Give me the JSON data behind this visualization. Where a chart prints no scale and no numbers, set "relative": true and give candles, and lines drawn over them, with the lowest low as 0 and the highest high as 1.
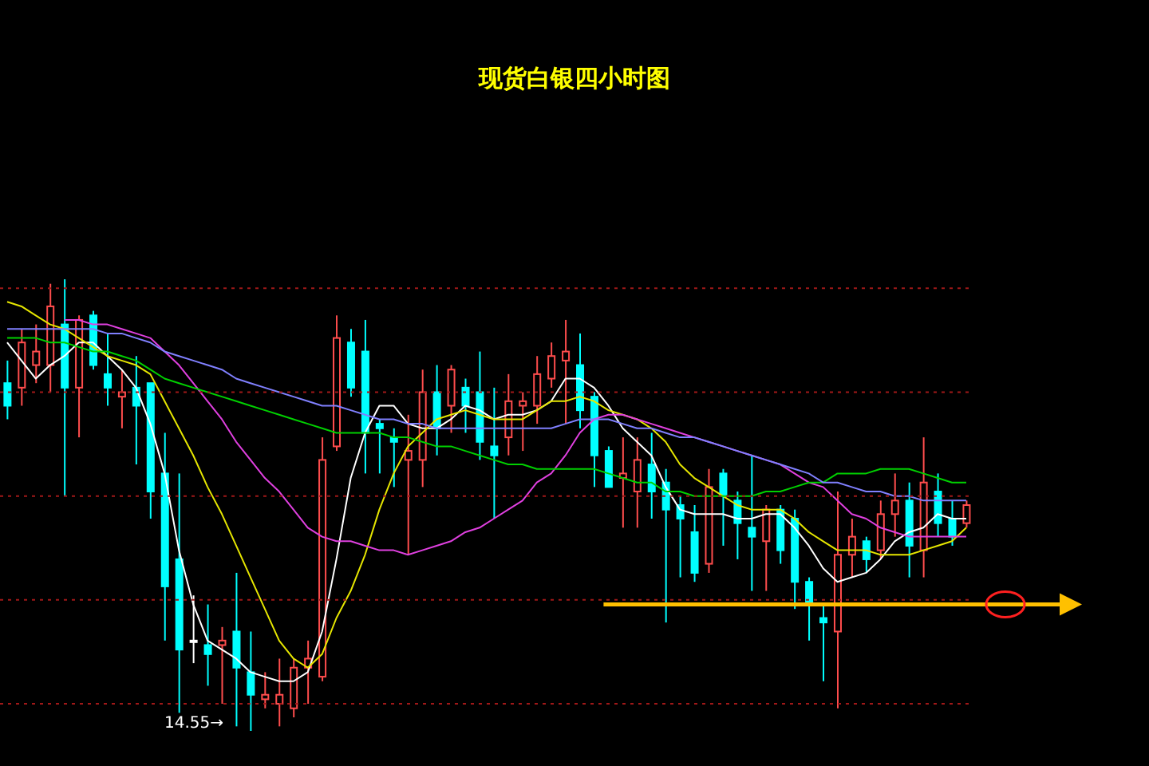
{
  "chart_data": {
    "type": "candlestick",
    "title": "现货白银四小时图",
    "relative": true,
    "tick_labels": false,
    "categories": [
      null,
      null,
      null,
      null,
      null,
      null,
      null,
      null,
      null,
      null,
      null,
      null,
      null,
      null,
      null,
      null,
      null,
      null,
      null,
      null,
      null,
      null,
      null,
      null,
      null,
      null,
      null,
      null,
      null,
      null,
      null,
      null,
      null,
      null,
      null,
      null,
      null,
      null,
      null,
      null,
      null,
      null,
      null,
      null,
      null,
      null,
      null,
      null,
      null,
      null,
      null,
      null,
      null,
      null,
      null,
      null,
      null,
      null,
      null,
      null,
      null,
      null,
      null,
      null,
      null,
      null,
      null,
      null
    ],
    "ohlc": [
      [
        0.77,
        0.82,
        0.69,
        0.72
      ],
      [
        0.76,
        0.89,
        0.72,
        0.86
      ],
      [
        0.81,
        0.9,
        0.77,
        0.84
      ],
      [
        0.81,
        0.99,
        0.75,
        0.94
      ],
      [
        0.9,
        1,
        0.52,
        0.76
      ],
      [
        0.76,
        0.92,
        0.65,
        0.91
      ],
      [
        0.92,
        0.93,
        0.8,
        0.81
      ],
      [
        0.79,
        0.88,
        0.72,
        0.76
      ],
      [
        0.74,
        0.8,
        0.67,
        0.75
      ],
      [
        0.76,
        0.83,
        0.59,
        0.72
      ],
      [
        0.77,
        0.77,
        0.47,
        0.53
      ],
      [
        0.57,
        0.66,
        0.2,
        0.32
      ],
      [
        0.38,
        0.57,
        0.04,
        0.18
      ],
      [
        0.2,
        0.3,
        0.15,
        0.2
      ],
      [
        0.19,
        0.28,
        0.1,
        0.17
      ],
      [
        0.19,
        0.23,
        0.06,
        0.2
      ],
      [
        0.22,
        0.35,
        0.01,
        0.14
      ],
      [
        0.13,
        0.22,
        0,
        0.08
      ],
      [
        0.07,
        0.13,
        0.05,
        0.08
      ],
      [
        0.06,
        0.16,
        0.01,
        0.08
      ],
      [
        0.05,
        0.16,
        0.03,
        0.14
      ],
      [
        0.14,
        0.2,
        0.06,
        0.16
      ],
      [
        0.12,
        0.65,
        0.11,
        0.6
      ],
      [
        0.63,
        0.92,
        0.62,
        0.87
      ],
      [
        0.86,
        0.89,
        0.74,
        0.76
      ],
      [
        0.84,
        0.91,
        0.57,
        0.66
      ],
      [
        0.68,
        0.69,
        0.57,
        0.67
      ],
      [
        0.65,
        0.67,
        0.54,
        0.64
      ],
      [
        0.6,
        0.7,
        0.39,
        0.62
      ],
      [
        0.6,
        0.8,
        0.54,
        0.75
      ],
      [
        0.75,
        0.81,
        0.61,
        0.67
      ],
      [
        0.72,
        0.81,
        0.66,
        0.8
      ],
      [
        0.76,
        0.78,
        0.66,
        0.72
      ],
      [
        0.75,
        0.84,
        0.6,
        0.64
      ],
      [
        0.63,
        0.76,
        0.47,
        0.61
      ],
      [
        0.65,
        0.79,
        0.61,
        0.73
      ],
      [
        0.72,
        0.75,
        0.62,
        0.73
      ],
      [
        0.72,
        0.83,
        0.68,
        0.79
      ],
      [
        0.78,
        0.86,
        0.76,
        0.83
      ],
      [
        0.82,
        0.91,
        0.68,
        0.84
      ],
      [
        0.81,
        0.88,
        0.67,
        0.71
      ],
      [
        0.74,
        0.75,
        0.54,
        0.61
      ],
      [
        0.62,
        0.63,
        0.54,
        0.54
      ],
      [
        0.56,
        0.65,
        0.45,
        0.57
      ],
      [
        0.53,
        0.65,
        0.45,
        0.6
      ],
      [
        0.59,
        0.66,
        0.47,
        0.53
      ],
      [
        0.55,
        0.58,
        0.24,
        0.49
      ],
      [
        0.5,
        0.52,
        0.34,
        0.47
      ],
      [
        0.44,
        0.5,
        0.33,
        0.35
      ],
      [
        0.37,
        0.58,
        0.35,
        0.54
      ],
      [
        0.57,
        0.58,
        0.41,
        0.52
      ],
      [
        0.51,
        0.53,
        0.38,
        0.46
      ],
      [
        0.45,
        0.61,
        0.31,
        0.43
      ],
      [
        0.42,
        0.5,
        0.31,
        0.49
      ],
      [
        0.49,
        0.5,
        0.37,
        0.4
      ],
      [
        0.47,
        0.49,
        0.27,
        0.33
      ],
      [
        0.33,
        0.34,
        0.2,
        0.28
      ],
      [
        0.25,
        0.28,
        0.11,
        0.24
      ],
      [
        0.22,
        0.53,
        0.05,
        0.39
      ],
      [
        0.39,
        0.47,
        0.34,
        0.43
      ],
      [
        0.42,
        0.43,
        0.35,
        0.38
      ],
      [
        0.4,
        0.51,
        0.38,
        0.48
      ],
      [
        0.48,
        0.57,
        0.43,
        0.51
      ],
      [
        0.51,
        0.55,
        0.34,
        0.41
      ],
      [
        0.4,
        0.65,
        0.34,
        0.55
      ],
      [
        0.53,
        0.57,
        0.43,
        0.46
      ],
      [
        0.47,
        0.51,
        0.41,
        0.43
      ],
      [
        0.46,
        0.51,
        0.45,
        0.5
      ]
    ],
    "colors": [
      "#00ffff",
      "#ff4d4d",
      "#ff4d4d",
      "#ff4d4d",
      "#00ffff",
      "#ff4d4d",
      "#00ffff",
      "#00ffff",
      "#ff4d4d",
      "#00ffff",
      "#00ffff",
      "#00ffff",
      "#00ffff",
      "#ffffff",
      "#00ffff",
      "#ff4d4d",
      "#00ffff",
      "#00ffff",
      "#ff4d4d",
      "#ff4d4d",
      "#ff4d4d",
      "#ff4d4d",
      "#ff4d4d",
      "#ff4d4d",
      "#00ffff",
      "#00ffff",
      "#00ffff",
      "#00ffff",
      "#ff4d4d",
      "#ff4d4d",
      "#00ffff",
      "#ff4d4d",
      "#00ffff",
      "#00ffff",
      "#00ffff",
      "#ff4d4d",
      "#ff4d4d",
      "#ff4d4d",
      "#ff4d4d",
      "#ff4d4d",
      "#00ffff",
      "#00ffff",
      "#00ffff",
      "#ff4d4d",
      "#ff4d4d",
      "#00ffff",
      "#00ffff",
      "#00ffff",
      "#00ffff",
      "#ff4d4d",
      "#00ffff",
      "#00ffff",
      "#00ffff",
      "#ff4d4d",
      "#00ffff",
      "#00ffff",
      "#00ffff",
      "#00ffff",
      "#ff4d4d",
      "#ff4d4d",
      "#00ffff",
      "#ff4d4d",
      "#ff4d4d",
      "#00ffff",
      "#ff4d4d",
      "#00ffff",
      "#00ffff",
      "#ff4d4d"
    ],
    "series": [
      {
        "type": "line",
        "color": "#ffffff",
        "values": [
          0.86,
          0.82,
          0.78,
          0.81,
          0.83,
          0.86,
          0.86,
          0.83,
          0.8,
          0.76,
          0.68,
          0.57,
          0.4,
          0.28,
          0.2,
          0.18,
          0.16,
          0.13,
          0.12,
          0.11,
          0.11,
          0.13,
          0.22,
          0.38,
          0.56,
          0.66,
          0.72,
          0.72,
          0.68,
          0.67,
          0.67,
          0.69,
          0.72,
          0.71,
          0.69,
          0.7,
          0.7,
          0.71,
          0.73,
          0.78,
          0.78,
          0.76,
          0.72,
          0.67,
          0.64,
          0.61,
          0.54,
          0.49,
          0.48,
          0.48,
          0.48,
          0.47,
          0.47,
          0.48,
          0.48,
          0.45,
          0.41,
          0.36,
          0.33,
          0.34,
          0.35,
          0.38,
          0.42,
          0.44,
          0.45,
          0.48,
          0.47,
          0.47
        ]
      },
      {
        "type": "line",
        "color": "#e6e600",
        "values": [
          0.95,
          0.94,
          0.92,
          0.9,
          0.89,
          0.87,
          0.85,
          0.83,
          0.82,
          0.81,
          0.79,
          0.73,
          0.67,
          0.61,
          0.54,
          0.48,
          0.41,
          0.34,
          0.27,
          0.2,
          0.16,
          0.14,
          0.17,
          0.25,
          0.31,
          0.39,
          0.49,
          0.57,
          0.63,
          0.66,
          0.69,
          0.7,
          0.71,
          0.7,
          0.69,
          0.69,
          0.69,
          0.71,
          0.73,
          0.73,
          0.74,
          0.73,
          0.71,
          0.7,
          0.69,
          0.67,
          0.64,
          0.59,
          0.56,
          0.54,
          0.52,
          0.5,
          0.49,
          0.49,
          0.49,
          0.47,
          0.44,
          0.42,
          0.4,
          0.4,
          0.4,
          0.39,
          0.39,
          0.39,
          0.4,
          0.41,
          0.42,
          0.45
        ]
      },
      {
        "type": "line",
        "color": "#e040e0",
        "values": [
          null,
          null,
          null,
          null,
          0.91,
          0.91,
          0.9,
          0.9,
          0.89,
          0.88,
          0.87,
          0.84,
          0.81,
          0.77,
          0.73,
          0.69,
          0.64,
          0.6,
          0.56,
          0.53,
          0.49,
          0.45,
          0.43,
          0.42,
          0.42,
          0.41,
          0.4,
          0.4,
          0.39,
          0.4,
          0.41,
          0.42,
          0.44,
          0.45,
          0.47,
          0.49,
          0.51,
          0.55,
          0.57,
          0.61,
          0.66,
          0.69,
          0.7,
          0.7,
          0.69,
          0.68,
          0.67,
          0.66,
          0.65,
          0.64,
          0.63,
          0.62,
          0.61,
          0.6,
          0.59,
          0.57,
          0.55,
          0.54,
          0.51,
          0.48,
          0.47,
          0.45,
          0.44,
          0.43,
          0.43,
          0.43,
          0.43,
          0.43
        ]
      },
      {
        "type": "line",
        "color": "#00d000",
        "values": [
          0.87,
          0.87,
          0.87,
          0.86,
          0.86,
          0.85,
          0.84,
          0.84,
          0.83,
          0.82,
          0.8,
          0.78,
          0.77,
          0.76,
          0.75,
          0.74,
          0.73,
          0.72,
          0.71,
          0.7,
          0.69,
          0.68,
          0.67,
          0.66,
          0.66,
          0.66,
          0.66,
          0.65,
          0.65,
          0.64,
          0.63,
          0.63,
          0.62,
          0.61,
          0.6,
          0.59,
          0.59,
          0.58,
          0.58,
          0.58,
          0.58,
          0.58,
          0.57,
          0.56,
          0.55,
          0.55,
          0.53,
          0.53,
          0.52,
          0.52,
          0.52,
          0.52,
          0.52,
          0.53,
          0.53,
          0.54,
          0.55,
          0.55,
          0.57,
          0.57,
          0.57,
          0.58,
          0.58,
          0.58,
          0.57,
          0.56,
          0.55,
          0.55
        ]
      },
      {
        "type": "line",
        "color": "#8080ff",
        "values": [
          0.89,
          0.89,
          0.89,
          0.89,
          0.89,
          0.89,
          0.89,
          0.88,
          0.88,
          0.87,
          0.86,
          0.84,
          0.83,
          0.82,
          0.81,
          0.8,
          0.78,
          0.77,
          0.76,
          0.75,
          0.74,
          0.73,
          0.72,
          0.72,
          0.71,
          0.7,
          0.69,
          0.69,
          0.68,
          0.68,
          0.67,
          0.67,
          0.67,
          0.67,
          0.67,
          0.67,
          0.67,
          0.67,
          0.67,
          0.68,
          0.69,
          0.69,
          0.69,
          0.68,
          0.67,
          0.67,
          0.66,
          0.65,
          0.65,
          0.64,
          0.63,
          0.62,
          0.61,
          0.6,
          0.59,
          0.58,
          0.57,
          0.55,
          0.55,
          0.54,
          0.53,
          0.53,
          0.52,
          0.52,
          0.51,
          0.51,
          0.51,
          0.51
        ]
      }
    ],
    "ref_lines": [
      {
        "axis": "y",
        "value": 0.28,
        "color": "#ffc000"
      },
      {
        "axis": "y",
        "value": 0.06,
        "color": "#a01818",
        "line_style": "dotted"
      },
      {
        "axis": "y",
        "value": 0.29,
        "color": "#a01818",
        "line_style": "dotted"
      },
      {
        "axis": "y",
        "value": 0.52,
        "color": "#a01818",
        "line_style": "dotted"
      },
      {
        "axis": "y",
        "value": 0.75,
        "color": "#a01818",
        "line_style": "dotted"
      },
      {
        "axis": "y",
        "value": 0.98,
        "color": "#a01818",
        "line_style": "dotted"
      }
    ],
    "annotations": [
      "14.55→"
    ]
  }
}
